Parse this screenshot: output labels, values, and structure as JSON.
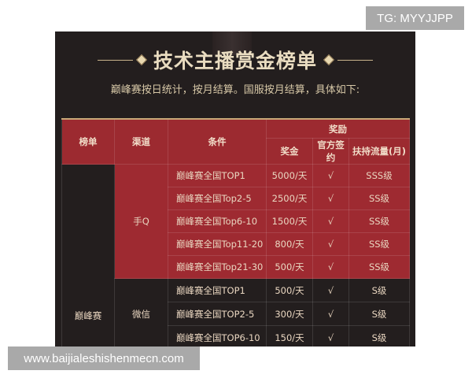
{
  "title": "技术主播赏金榜单",
  "subtitle": "巅峰赛按日统计，按月结算。国服按月结算，具体如下:",
  "headers": {
    "list": "榜单",
    "channel": "渠道",
    "condition": "条件",
    "reward": "奖励",
    "bonus": "奖金",
    "contract": "官方签约",
    "traffic": "扶持流量(月)"
  },
  "list_name": "巅峰赛",
  "channels": [
    {
      "name": "手Q",
      "rows": [
        {
          "condition": "巅峰赛全国TOP1",
          "bonus": "5000/天",
          "contract": "√",
          "traffic": "SSS级"
        },
        {
          "condition": "巅峰赛全国Top2-5",
          "bonus": "2500/天",
          "contract": "√",
          "traffic": "SS级"
        },
        {
          "condition": "巅峰赛全国Top6-10",
          "bonus": "1500/天",
          "contract": "√",
          "traffic": "SS级"
        },
        {
          "condition": "巅峰赛全国Top11-20",
          "bonus": "800/天",
          "contract": "√",
          "traffic": "SS级"
        },
        {
          "condition": "巅峰赛全国Top21-30",
          "bonus": "500/天",
          "contract": "√",
          "traffic": "SS级"
        }
      ]
    },
    {
      "name": "微信",
      "rows": [
        {
          "condition": "巅峰赛全国TOP1",
          "bonus": "500/天",
          "contract": "√",
          "traffic": "S级"
        },
        {
          "condition": "巅峰赛全国TOP2-5",
          "bonus": "300/天",
          "contract": "√",
          "traffic": "S级"
        },
        {
          "condition": "巅峰赛全国TOP6-10",
          "bonus": "150/天",
          "contract": "√",
          "traffic": "S级"
        }
      ]
    }
  ],
  "watermarks": {
    "top": "TG: MYYJJPP",
    "bottom": "www.baijialeshishenmecn.com"
  },
  "colors": {
    "red": "#9e2a31",
    "dark": "#231e1e",
    "gold": "#e9dcc0"
  }
}
